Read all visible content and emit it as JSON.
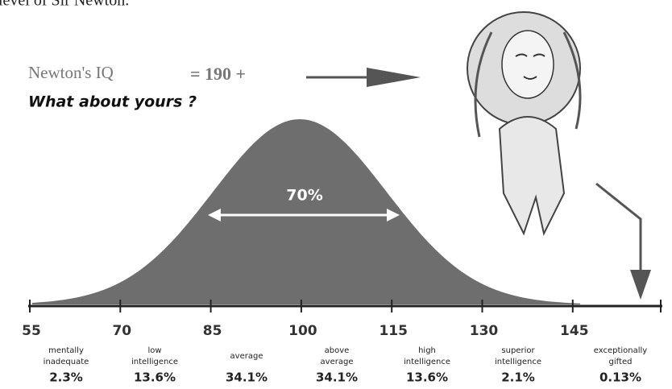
{
  "top_text": "level of Sir Newton.",
  "headline": {
    "label": "Newton's IQ",
    "value": "= 190 +",
    "question": "What about yours ?"
  },
  "center_label": "70%",
  "axis": {
    "ticks": [
      "55",
      "70",
      "85",
      "100",
      "115",
      "130",
      "145"
    ]
  },
  "bands": [
    {
      "lines": [
        "mentally",
        "inadequate"
      ],
      "percent": "2.3%"
    },
    {
      "lines": [
        "low",
        "intelligence"
      ],
      "percent": "13.6%"
    },
    {
      "lines": [
        "average"
      ],
      "percent": "34.1%"
    },
    {
      "lines": [
        "above",
        "average"
      ],
      "percent": "34.1%"
    },
    {
      "lines": [
        "high",
        "intelligence"
      ],
      "percent": "13.6%"
    },
    {
      "lines": [
        "superior",
        "intelligence"
      ],
      "percent": "2.1%"
    },
    {
      "lines": [
        "exceptionally",
        "gifted"
      ],
      "percent": "0.13%"
    }
  ]
}
